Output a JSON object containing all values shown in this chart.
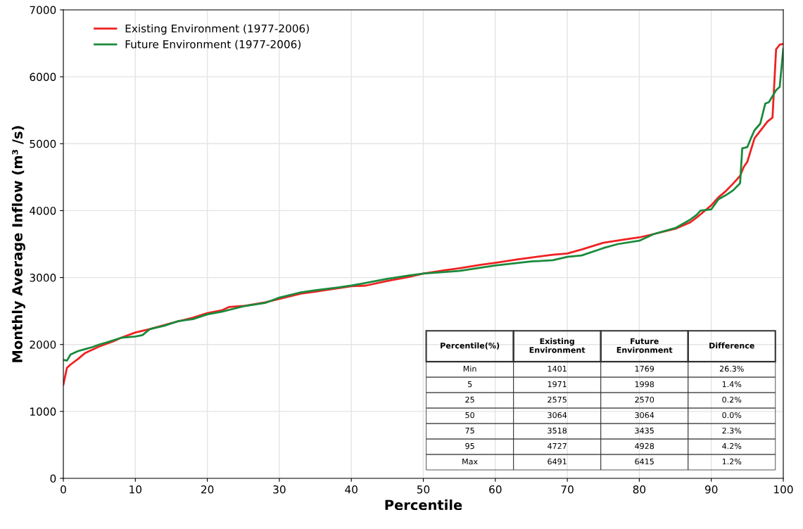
{
  "chart_data": {
    "type": "line",
    "xlabel": "Percentile",
    "ylabel": "Monthly Average Inflow (m³ /s)",
    "xlim": [
      0,
      100
    ],
    "xticks": [
      0,
      10,
      20,
      30,
      40,
      50,
      60,
      70,
      80,
      90,
      100
    ],
    "ylim": [
      0,
      7000
    ],
    "yticks": [
      0,
      1000,
      2000,
      3000,
      4000,
      5000,
      6000,
      7000
    ],
    "grid": true,
    "legend": "top left",
    "series": [
      {
        "name": "Existing Environment (1977-2006)",
        "color": "#ee2222",
        "x": [
          0,
          0.5,
          1,
          2,
          3,
          4,
          5,
          7,
          8,
          10,
          12,
          15,
          18,
          20,
          22,
          23,
          25,
          28,
          30,
          33,
          35,
          40,
          42,
          45,
          48,
          50,
          53,
          55,
          58,
          60,
          63,
          65,
          68,
          70,
          72,
          75,
          78,
          80,
          82,
          85,
          87,
          88,
          90,
          91,
          92,
          93,
          94,
          94.5,
          95,
          96,
          97.8,
          98.5,
          99,
          99.5,
          100
        ],
        "values": [
          1400,
          1650,
          1700,
          1780,
          1870,
          1920,
          1970,
          2050,
          2100,
          2180,
          2230,
          2320,
          2400,
          2470,
          2510,
          2560,
          2575,
          2630,
          2680,
          2760,
          2790,
          2870,
          2880,
          2950,
          3010,
          3060,
          3110,
          3140,
          3190,
          3220,
          3270,
          3300,
          3340,
          3360,
          3420,
          3520,
          3570,
          3600,
          3650,
          3730,
          3820,
          3900,
          4080,
          4200,
          4290,
          4400,
          4520,
          4650,
          4730,
          5080,
          5330,
          5390,
          6410,
          6480,
          6490
        ]
      },
      {
        "name": "Future Environment (1977-2006)",
        "color": "#1a8a3c",
        "x": [
          0,
          0.5,
          1,
          2,
          3,
          4,
          5,
          6,
          8,
          10,
          11,
          12,
          14,
          16,
          18,
          20,
          22,
          25,
          28,
          30,
          33,
          35,
          38,
          40,
          45,
          48,
          50,
          55,
          60,
          65,
          68,
          70,
          72,
          75,
          77,
          80,
          81,
          82,
          85,
          87,
          88,
          88.5,
          90,
          91,
          92,
          93,
          94,
          94.3,
          95,
          95.5,
          96,
          96.8,
          97.5,
          98,
          99,
          99.5,
          100
        ],
        "values": [
          1770,
          1760,
          1850,
          1900,
          1930,
          1960,
          2000,
          2030,
          2100,
          2120,
          2140,
          2230,
          2280,
          2350,
          2380,
          2450,
          2490,
          2570,
          2620,
          2700,
          2780,
          2810,
          2850,
          2880,
          2980,
          3030,
          3060,
          3100,
          3180,
          3240,
          3260,
          3310,
          3330,
          3440,
          3500,
          3550,
          3600,
          3650,
          3740,
          3860,
          3940,
          4000,
          4020,
          4170,
          4230,
          4300,
          4410,
          4930,
          4950,
          5080,
          5200,
          5300,
          5600,
          5620,
          5800,
          5850,
          6420
        ]
      }
    ],
    "annotations": [
      "Percentile(%)",
      "Existing\nEnvironment",
      "Future\nEnvironment",
      "Difference",
      "Min",
      "1401",
      "1769",
      "26.3%",
      "5",
      "1971",
      "1998",
      "1.4%",
      "25",
      "2575",
      "2570",
      "0.2%",
      "50",
      "3064",
      "3064",
      "0.0%",
      "75",
      "3518",
      "3435",
      "2.3%",
      "95",
      "4727",
      "4928",
      "4.2%",
      "Max",
      "6491",
      "6415",
      "1.2%"
    ]
  }
}
